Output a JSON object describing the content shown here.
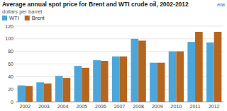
{
  "chart_data": {
    "type": "bar",
    "title": "Average annual spot price for Brent and WTI crude oil, 2002-2012",
    "subtitle": "dollars per barrel",
    "annotations": [
      "eia"
    ],
    "categories": [
      "2002",
      "2003",
      "2004",
      "2005",
      "2006",
      "2007",
      "2008",
      "2009",
      "2010",
      "2011",
      "2012"
    ],
    "series": [
      {
        "name": "WTI",
        "color": "#4da6d9",
        "values": [
          26,
          31,
          41,
          57,
          66,
          72,
          100,
          62,
          80,
          95,
          94
        ]
      },
      {
        "name": "Brent",
        "color": "#b5651d",
        "values": [
          25,
          29,
          38,
          54,
          65,
          72,
          97,
          62,
          80,
          111,
          111
        ]
      }
    ],
    "ylim": [
      0,
      120
    ],
    "yticks": [
      0,
      20,
      40,
      60,
      80,
      100,
      120
    ],
    "grid": true,
    "legend": "upper left"
  }
}
